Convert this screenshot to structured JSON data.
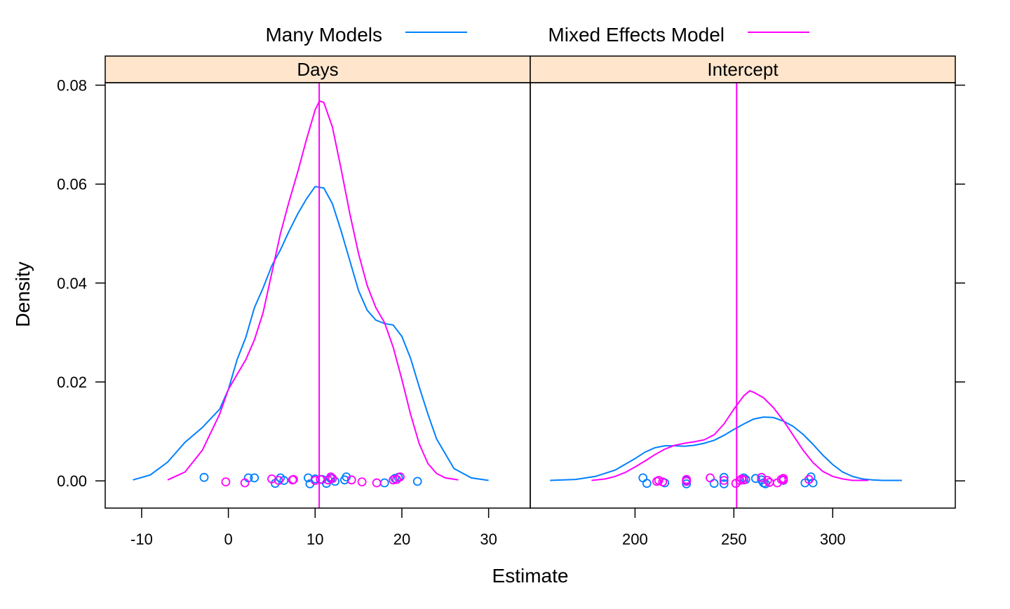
{
  "chart_data": {
    "type": "line",
    "subtype": "density-with-rug",
    "xlabel": "Estimate",
    "ylabel": "Density",
    "legend": {
      "placement": "top",
      "entries": [
        {
          "name": "Many Models",
          "color": "#0080ff"
        },
        {
          "name": "Mixed Effects Model",
          "color": "#ff00ff"
        }
      ]
    },
    "y_ticks": [
      "0.00",
      "0.02",
      "0.04",
      "0.06",
      "0.08"
    ],
    "ylim": [
      -0.0055,
      0.0805
    ],
    "strip_color": "#ffe5cc",
    "panels": [
      {
        "strip": "Days",
        "xlim": [
          -14.2,
          34.8
        ],
        "x_ticks": [
          "-10",
          "0",
          "10",
          "20",
          "30"
        ],
        "ref_line": 10.47,
        "series": [
          {
            "name": "Many Models",
            "color": "#0080ff",
            "x": [
              -11,
              -9,
              -7,
              -5,
              -3,
              -1,
              0,
              1,
              2,
              3,
              4,
              5,
              6,
              7,
              8,
              9,
              10,
              11,
              12,
              13,
              14,
              15,
              16,
              17,
              18,
              19,
              20,
              21,
              22,
              23,
              24,
              26,
              28,
              30
            ],
            "y": [
              0.0002,
              0.0012,
              0.0038,
              0.0078,
              0.0108,
              0.0145,
              0.0185,
              0.0245,
              0.029,
              0.035,
              0.039,
              0.0435,
              0.0467,
              0.0505,
              0.054,
              0.057,
              0.0595,
              0.0592,
              0.056,
              0.0505,
              0.0445,
              0.0385,
              0.0345,
              0.0325,
              0.0318,
              0.0315,
              0.0292,
              0.0248,
              0.019,
              0.0135,
              0.0085,
              0.0025,
              0.0006,
              0.0001
            ]
          },
          {
            "name": "Mixed Effects Model",
            "color": "#ff00ff",
            "x": [
              -7,
              -5,
              -3,
              -1,
              0,
              1,
              2,
              3,
              4,
              5,
              6,
              7,
              8,
              9,
              10,
              10.5,
              11,
              12,
              13,
              14,
              15,
              16,
              17,
              18,
              19,
              20,
              21,
              22,
              23,
              24,
              25,
              26.5
            ],
            "y": [
              0.0002,
              0.0018,
              0.0062,
              0.0135,
              0.0185,
              0.0215,
              0.0245,
              0.0285,
              0.034,
              0.042,
              0.05,
              0.0565,
              0.0625,
              0.069,
              0.075,
              0.0768,
              0.0765,
              0.0715,
              0.063,
              0.054,
              0.046,
              0.0395,
              0.035,
              0.032,
              0.027,
              0.0205,
              0.0135,
              0.0075,
              0.0035,
              0.0015,
              0.0006,
              0.0002
            ]
          }
        ],
        "rug": [
          {
            "name": "Many Models",
            "color": "#0080ff",
            "x": [
              -2.8,
              2.3,
              3.0,
              5.4,
              6.0,
              6.4,
              9.2,
              9.4,
              10.0,
              10.8,
              11.3,
              11.8,
              12.3,
              13.6,
              13.4,
              18.0,
              19.2,
              19.6,
              21.8
            ],
            "y": [
              0.0007,
              0.0006,
              0.0006,
              -0.0005,
              0.0006,
              0.0001,
              0.0006,
              -0.0006,
              0.0004,
              0.0003,
              -0.0005,
              0.0005,
              -0.0001,
              0.0008,
              0.0002,
              -0.0004,
              0.0005,
              0.0007,
              -0.0001
            ]
          },
          {
            "name": "Mixed Effects Model",
            "color": "#ff00ff",
            "x": [
              -0.3,
              1.9,
              5.0,
              5.8,
              7.4,
              7.5,
              10.0,
              10.6,
              11.5,
              11.8,
              12.0,
              14.2,
              15.4,
              17.1,
              19.0,
              19.4,
              19.8
            ],
            "y": [
              -0.0002,
              -0.0004,
              0.0004,
              0.0001,
              0.0002,
              0.0003,
              0.0001,
              0.0003,
              0.0002,
              0.0008,
              0.0005,
              0.0002,
              -0.0002,
              -0.0004,
              0.0002,
              0.0003,
              0.0008
            ]
          }
        ]
      },
      {
        "strip": "Intercept",
        "xlim": [
          147,
          362
        ],
        "x_ticks": [
          "200",
          "250",
          "300"
        ],
        "ref_line": 251.4,
        "series": [
          {
            "name": "Many Models",
            "color": "#0080ff",
            "x": [
              157,
              170,
              180,
              190,
              200,
              205,
              210,
              215,
              220,
              225,
              230,
              235,
              240,
              245,
              250,
              255,
              260,
              265,
              270,
              275,
              280,
              285,
              290,
              295,
              300,
              305,
              310,
              315,
              320,
              325,
              335
            ],
            "y": [
              0.0001,
              0.0003,
              0.0009,
              0.0022,
              0.0045,
              0.0058,
              0.0067,
              0.0071,
              0.0071,
              0.007,
              0.0072,
              0.0076,
              0.0082,
              0.0092,
              0.0104,
              0.0115,
              0.0125,
              0.0129,
              0.0128,
              0.0121,
              0.011,
              0.0094,
              0.0074,
              0.0052,
              0.0033,
              0.0018,
              0.0009,
              0.0004,
              0.0002,
              0.0001,
              0.0001
            ]
          },
          {
            "name": "Mixed Effects Model",
            "color": "#ff00ff",
            "x": [
              178,
              185,
              190,
              195,
              200,
              205,
              210,
              215,
              220,
              225,
              230,
              235,
              240,
              245,
              250,
              255,
              258,
              260,
              265,
              270,
              275,
              280,
              285,
              290,
              295,
              300,
              305,
              310,
              318
            ],
            "y": [
              0.0001,
              0.0004,
              0.0009,
              0.0017,
              0.0028,
              0.004,
              0.0053,
              0.0064,
              0.0072,
              0.0076,
              0.0079,
              0.0083,
              0.0093,
              0.0115,
              0.0145,
              0.0172,
              0.0182,
              0.0179,
              0.0168,
              0.0148,
              0.0122,
              0.0092,
              0.0062,
              0.0037,
              0.0019,
              0.0009,
              0.0004,
              0.0001,
              0.0001
            ]
          }
        ],
        "rug": [
          {
            "name": "Many Models",
            "color": "#0080ff",
            "x": [
              204,
              206,
              215,
              226,
              226,
              240,
              245,
              245,
              255,
              256,
              261,
              264,
              265,
              266,
              275,
              286,
              289,
              290
            ],
            "y": [
              0.0006,
              -0.0005,
              -0.0004,
              -0.0006,
              0.0001,
              -0.0005,
              -0.0006,
              0.0007,
              0.0006,
              0.0003,
              0.0005,
              0.0002,
              -0.0004,
              -0.0006,
              0.0001,
              -0.0004,
              0.0008,
              -0.0004
            ]
          },
          {
            "name": "Mixed Effects Model",
            "color": "#ff00ff",
            "x": [
              211,
              212,
              214,
              226,
              226,
              238,
              245,
              251,
              253,
              254,
              255,
              264,
              267,
              268,
              272,
              274,
              275,
              275,
              288
            ],
            "y": [
              -0.0001,
              0.0001,
              -0.0002,
              0.0003,
              -0.0001,
              0.0006,
              0.0001,
              -0.0005,
              0.0001,
              0.0004,
              0.0002,
              0.0007,
              0.0001,
              -0.0003,
              -0.0004,
              0.0003,
              0.0005,
              0.0002,
              0.0003
            ]
          }
        ]
      }
    ]
  }
}
